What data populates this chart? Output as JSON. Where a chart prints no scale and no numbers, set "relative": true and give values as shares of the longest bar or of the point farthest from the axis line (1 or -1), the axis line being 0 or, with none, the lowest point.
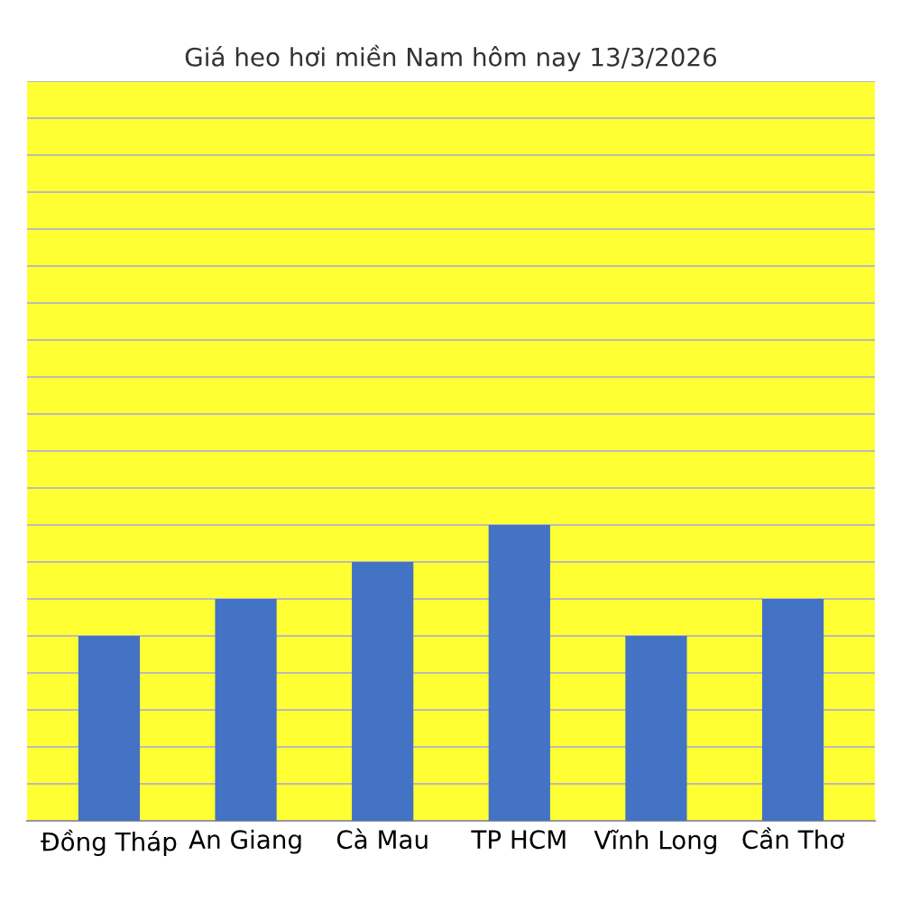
{
  "chart_data": {
    "type": "bar",
    "title": "Giá heo hơi miền Nam hôm nay 13/3/2026",
    "categories": [
      "Đồng Tháp",
      "An Giang",
      "Cà Mau",
      "TP HCM",
      "Vĩnh Long",
      "Cần Thơ"
    ],
    "values": [
      0.625,
      0.75,
      0.875,
      1,
      0.625,
      0.75
    ],
    "color": "#4472c4",
    "relative": true,
    "grid": "y",
    "legend": false
  }
}
